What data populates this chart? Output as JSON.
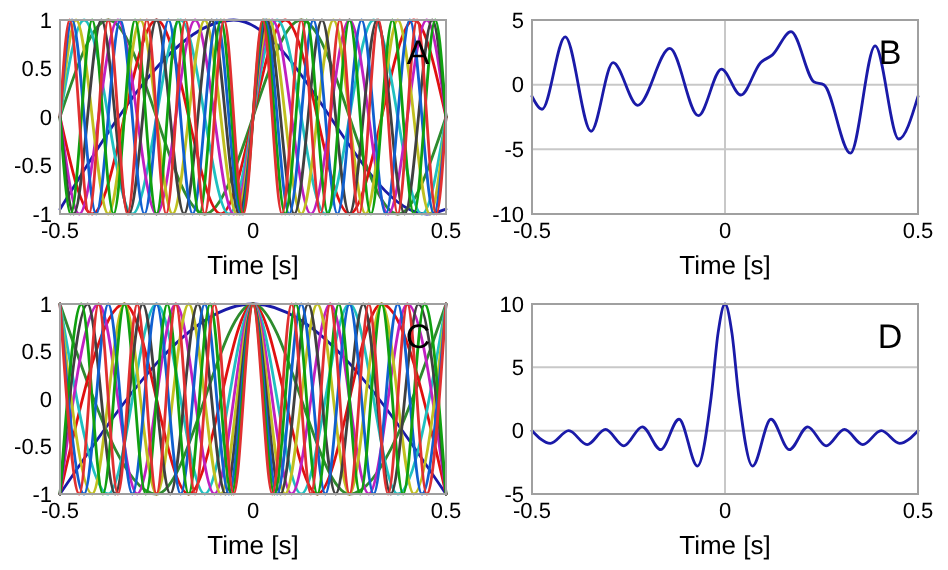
{
  "chart_data": [
    {
      "type": "line",
      "xlabel": "Time [s]",
      "annotations": [
        "A"
      ],
      "xlim": [
        -0.5,
        0.5
      ],
      "xticks": [
        -0.5,
        0,
        0.5
      ],
      "ylim": [
        -1,
        1
      ],
      "yticks": [
        -1,
        -0.5,
        0,
        0.5,
        1
      ],
      "series": [
        {
          "color": "#1a1aa8",
          "x": [
            -0.5,
            -0.05,
            0.45,
            0.5
          ],
          "values": [
            -0.95,
            1,
            -1,
            -0.95
          ]
        },
        {
          "color": "#2e8b2e",
          "x": [
            -0.5,
            -0.375,
            -0.125,
            0.125,
            0.375,
            0.5
          ],
          "values": [
            0,
            1,
            -1,
            1,
            -1,
            0
          ]
        },
        {
          "color": "#e01010",
          "x": [
            -0.5,
            -0.4167,
            -0.25,
            -0.0833,
            0.0833,
            0.25,
            0.4167,
            0.5
          ],
          "values": [
            0,
            -1,
            1,
            -1,
            1,
            -1,
            1,
            0
          ]
        },
        {
          "color": "#20c0c0",
          "x": [
            -0.5,
            -0.4375,
            -0.3125,
            -0.1875,
            -0.0625,
            0.0625,
            0.1875,
            0.3125,
            0.4375,
            0.5
          ],
          "values": [
            0,
            1,
            -1,
            1,
            -1,
            1,
            -1,
            1,
            -1,
            0
          ]
        },
        {
          "color": "#c020c0",
          "x": [
            -0.5,
            -0.45,
            -0.35,
            -0.25,
            -0.15,
            -0.05,
            0.05,
            0.15,
            0.25,
            0.35,
            0.45,
            0.5
          ],
          "values": [
            0,
            -1,
            1,
            -1,
            1,
            -1,
            1,
            -1,
            1,
            -1,
            1,
            0
          ]
        },
        {
          "color": "#c0c020",
          "x": [
            -0.5,
            -0.4583,
            -0.375,
            -0.2917,
            -0.2083,
            -0.125,
            -0.0417,
            0.0417,
            0.125,
            0.2083,
            0.2917,
            0.375,
            0.4583,
            0.5
          ],
          "values": [
            0,
            1,
            -1,
            1,
            -1,
            1,
            -1,
            1,
            -1,
            1,
            -1,
            1,
            -1,
            0
          ]
        },
        {
          "color": "#404040",
          "x": [
            -0.5,
            -0.4643,
            -0.3929,
            -0.3214,
            -0.25,
            -0.1786,
            -0.1071,
            -0.0357,
            0.0357,
            0.1071,
            0.1786,
            0.25,
            0.3214,
            0.3929,
            0.4643,
            0.5
          ],
          "values": [
            0,
            -1,
            1,
            -1,
            1,
            -1,
            1,
            -1,
            1,
            -1,
            1,
            -1,
            1,
            -1,
            1,
            0
          ]
        },
        {
          "color": "#1060d0",
          "x": [
            -0.5,
            -0.4688,
            -0.4063,
            -0.3438,
            -0.2813,
            -0.2188,
            -0.1563,
            -0.0938,
            -0.0313,
            0.0313,
            0.0938,
            0.1563,
            0.2188,
            0.2813,
            0.3438,
            0.4063,
            0.4688,
            0.5
          ],
          "values": [
            0,
            1,
            -1,
            1,
            -1,
            1,
            -1,
            1,
            -1,
            1,
            -1,
            1,
            -1,
            1,
            -1,
            1,
            -1,
            0
          ]
        },
        {
          "color": "#10a010",
          "x": [
            -0.5,
            -0.4722,
            -0.4167,
            -0.3611,
            -0.3056,
            -0.25,
            -0.1944,
            -0.1389,
            -0.0833,
            -0.0278,
            0.0278,
            0.0833,
            0.1389,
            0.1944,
            0.25,
            0.3056,
            0.3611,
            0.4167,
            0.4722,
            0.5
          ],
          "values": [
            0,
            -1,
            1,
            -1,
            1,
            -1,
            1,
            -1,
            1,
            -1,
            1,
            -1,
            1,
            -1,
            1,
            -1,
            1,
            -1,
            1,
            0
          ]
        },
        {
          "color": "#e03030",
          "x": [
            -0.5,
            -0.475,
            -0.425,
            -0.375,
            -0.325,
            -0.275,
            -0.225,
            -0.175,
            -0.125,
            -0.075,
            -0.025,
            0.025,
            0.075,
            0.125,
            0.175,
            0.225,
            0.275,
            0.325,
            0.375,
            0.425,
            0.475,
            0.5
          ],
          "values": [
            0,
            1,
            -1,
            1,
            -1,
            1,
            -1,
            1,
            -1,
            1,
            -1,
            1,
            -1,
            1,
            -1,
            1,
            -1,
            1,
            -1,
            1,
            -1,
            0
          ]
        }
      ]
    },
    {
      "type": "line",
      "xlabel": "Time [s]",
      "annotations": [
        "B"
      ],
      "grid": true,
      "xlim": [
        -0.5,
        0.5
      ],
      "xticks": [
        -0.5,
        0,
        0.5
      ],
      "ylim": [
        -10,
        5
      ],
      "yticks": [
        -10,
        -5,
        0,
        5
      ],
      "series": [
        {
          "color": "#1a1aa8",
          "x": [
            -0.5,
            -0.474,
            -0.414,
            -0.347,
            -0.29,
            -0.226,
            -0.143,
            -0.069,
            -0.009,
            0.041,
            0.092,
            0.123,
            0.171,
            0.231,
            0.256,
            0.325,
            0.389,
            0.45,
            0.5
          ],
          "values": [
            -0.9,
            -1.9,
            3.7,
            -3.6,
            1.7,
            -1.6,
            2.8,
            -2.4,
            1.2,
            -0.8,
            1.7,
            2.3,
            4.1,
            0.2,
            0,
            -5.3,
            3,
            -4.2,
            -0.9
          ]
        }
      ]
    },
    {
      "type": "line",
      "xlabel": "Time [s]",
      "annotations": [
        "C"
      ],
      "xlim": [
        -0.5,
        0.5
      ],
      "xticks": [
        -0.5,
        0,
        0.5
      ],
      "ylim": [
        -1,
        1
      ],
      "yticks": [
        -1,
        -0.5,
        0,
        0.5,
        1
      ],
      "series": [
        {
          "color": "#1a1aa8",
          "x": [
            -0.5,
            0,
            0.5
          ],
          "values": [
            -1,
            1,
            -1
          ]
        },
        {
          "color": "#2e8b2e",
          "x": [
            -0.5,
            -0.25,
            0,
            0.25,
            0.5
          ],
          "values": [
            1,
            -1,
            1,
            -1,
            1
          ]
        },
        {
          "color": "#e01010",
          "x": [
            -0.5,
            -0.3333,
            -0.1667,
            0,
            0.1667,
            0.3333,
            0.5
          ],
          "values": [
            -1,
            1,
            -1,
            1,
            -1,
            1,
            -1
          ]
        },
        {
          "color": "#20c0c0",
          "x": [
            -0.5,
            -0.375,
            -0.25,
            -0.125,
            0,
            0.125,
            0.25,
            0.375,
            0.5
          ],
          "values": [
            1,
            -1,
            1,
            -1,
            1,
            -1,
            1,
            -1,
            1
          ]
        },
        {
          "color": "#c020c0",
          "x": [
            -0.5,
            -0.4,
            -0.3,
            -0.2,
            -0.1,
            0,
            0.1,
            0.2,
            0.3,
            0.4,
            0.5
          ],
          "values": [
            -1,
            1,
            -1,
            1,
            -1,
            1,
            -1,
            1,
            -1,
            1,
            -1
          ]
        },
        {
          "color": "#c0c020",
          "x": [
            -0.5,
            -0.4167,
            -0.3333,
            -0.25,
            -0.1667,
            -0.0833,
            0,
            0.0833,
            0.1667,
            0.25,
            0.3333,
            0.4167,
            0.5
          ],
          "values": [
            1,
            -1,
            1,
            -1,
            1,
            -1,
            1,
            -1,
            1,
            -1,
            1,
            -1,
            1
          ]
        },
        {
          "color": "#404040",
          "x": [
            -0.5,
            -0.4286,
            -0.3571,
            -0.2857,
            -0.2143,
            -0.1429,
            -0.0714,
            0,
            0.0714,
            0.1429,
            0.2143,
            0.2857,
            0.3571,
            0.4286,
            0.5
          ],
          "values": [
            -1,
            1,
            -1,
            1,
            -1,
            1,
            -1,
            1,
            -1,
            1,
            -1,
            1,
            -1,
            1,
            -1
          ]
        },
        {
          "color": "#1060d0",
          "x": [
            -0.5,
            -0.4375,
            -0.375,
            -0.3125,
            -0.25,
            -0.1875,
            -0.125,
            -0.0625,
            0,
            0.0625,
            0.125,
            0.1875,
            0.25,
            0.3125,
            0.375,
            0.4375,
            0.5
          ],
          "values": [
            1,
            -1,
            1,
            -1,
            1,
            -1,
            1,
            -1,
            1,
            -1,
            1,
            -1,
            1,
            -1,
            1,
            -1,
            1
          ]
        },
        {
          "color": "#10a010",
          "x": [
            -0.5,
            -0.4444,
            -0.3889,
            -0.3333,
            -0.2778,
            -0.2222,
            -0.1667,
            -0.1111,
            -0.0556,
            0,
            0.0556,
            0.1111,
            0.1667,
            0.2222,
            0.2778,
            0.3333,
            0.3889,
            0.4444,
            0.5
          ],
          "values": [
            -1,
            1,
            -1,
            1,
            -1,
            1,
            -1,
            1,
            -1,
            1,
            -1,
            1,
            -1,
            1,
            -1,
            1,
            -1,
            1,
            -1
          ]
        },
        {
          "color": "#e03030",
          "x": [
            -0.5,
            -0.45,
            -0.4,
            -0.35,
            -0.3,
            -0.25,
            -0.2,
            -0.15,
            -0.1,
            -0.05,
            0,
            0.05,
            0.1,
            0.15,
            0.2,
            0.25,
            0.3,
            0.35,
            0.4,
            0.45,
            0.5
          ],
          "values": [
            1,
            -1,
            1,
            -1,
            1,
            -1,
            1,
            -1,
            1,
            -1,
            1,
            -1,
            1,
            -1,
            1,
            -1,
            1,
            -1,
            1,
            -1,
            1
          ]
        }
      ]
    },
    {
      "type": "line",
      "xlabel": "Time [s]",
      "annotations": [
        "D"
      ],
      "grid": true,
      "xlim": [
        -0.5,
        0.5
      ],
      "xticks": [
        -0.5,
        0,
        0.5
      ],
      "ylim": [
        -5,
        10
      ],
      "yticks": [
        -5,
        0,
        5,
        10
      ],
      "series": [
        {
          "color": "#1a1aa8",
          "x": [
            -0.5,
            -0.4524,
            -0.4048,
            -0.3571,
            -0.3095,
            -0.2619,
            -0.2143,
            -0.1667,
            -0.119,
            -0.0714,
            -0.0357,
            -0.018,
            0,
            0.018,
            0.0357,
            0.0714,
            0.119,
            0.1667,
            0.2143,
            0.2619,
            0.3095,
            0.3571,
            0.4048,
            0.4524,
            0.5
          ],
          "values": [
            0,
            -1,
            0,
            -1.1,
            0.1,
            -1.2,
            0.3,
            -1.5,
            0.9,
            -2.8,
            2.7,
            7.7,
            10,
            7.7,
            2.7,
            -2.8,
            0.9,
            -1.5,
            0.3,
            -1.2,
            0.1,
            -1.1,
            0,
            -1,
            0
          ]
        }
      ]
    }
  ]
}
